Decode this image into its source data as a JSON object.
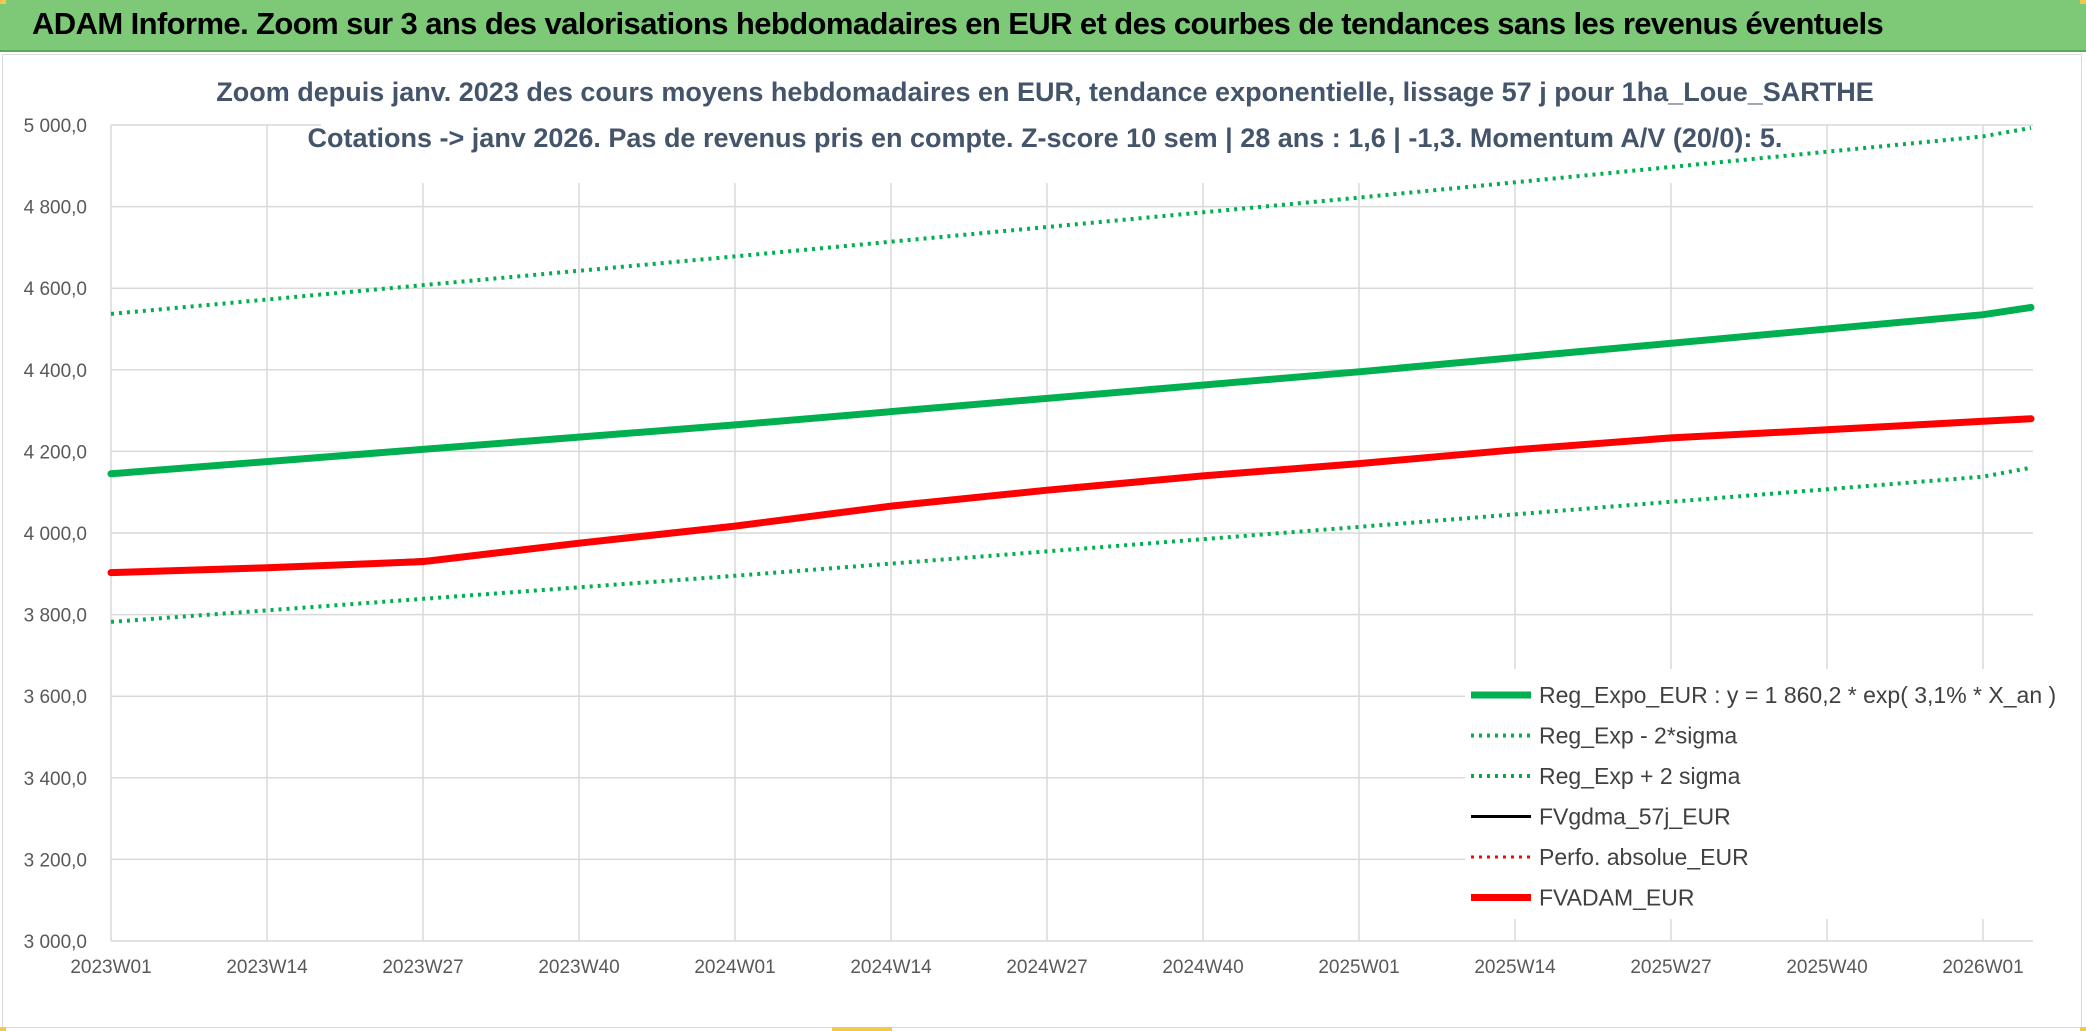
{
  "banner": {
    "title": "ADAM Informe. Zoom sur 3 ans des valorisations hebdomadaires en EUR et des courbes de tendances sans les revenus éventuels"
  },
  "colors": {
    "banner_bg": "#7dc977",
    "trend_green": "#00b050",
    "fv_red": "#ff0000",
    "fv_black": "#000000"
  },
  "chart_data": {
    "type": "line",
    "title": "Zoom depuis janv. 2023 des cours moyens hebdomadaires en EUR, tendance exponentielle, lissage 57 j pour 1ha_Loue_SARTHE",
    "subtitle": "Cotations -> janv 2026. Pas de revenus pris en compte. Z-score 10 sem | 28 ans : 1,6 | -1,3. Momentum A/V (20/0): 5.",
    "xlabel": "",
    "ylabel": "",
    "x_tick_labels": [
      "2023W01",
      "2023W14",
      "2023W27",
      "2023W40",
      "2024W01",
      "2024W14",
      "2024W27",
      "2024W40",
      "2025W01",
      "2025W14",
      "2025W27",
      "2025W40",
      "2026W01"
    ],
    "y_tick_labels": [
      "3 000,0",
      "3 200,0",
      "3 400,0",
      "3 600,0",
      "3 800,0",
      "4 000,0",
      "4 200,0",
      "4 400,0",
      "4 600,0",
      "4 800,0",
      "5 000,0"
    ],
    "ylim": [
      3000,
      5000
    ],
    "grid": true,
    "legend_position": "bottom-right",
    "x_week_index_range": [
      0,
      160
    ],
    "series": [
      {
        "name": "Reg_Expo_EUR : y = 1 860,2 * exp( 3,1% *  X_an )",
        "color": "#00b050",
        "style": "solid",
        "width": 7,
        "points": [
          [
            0,
            4145
          ],
          [
            52,
            4265
          ],
          [
            104,
            4395
          ],
          [
            156,
            4535
          ],
          [
            160,
            4553
          ]
        ]
      },
      {
        "name": "Reg_Exp - 2*sigma",
        "color": "#00b050",
        "style": "dotted",
        "width": 4,
        "points": [
          [
            0,
            3782
          ],
          [
            52,
            3895
          ],
          [
            104,
            4015
          ],
          [
            156,
            4138
          ],
          [
            160,
            4160
          ]
        ]
      },
      {
        "name": "Reg_Exp + 2 sigma",
        "color": "#00b050",
        "style": "dotted",
        "width": 4,
        "points": [
          [
            0,
            4537
          ],
          [
            52,
            4678
          ],
          [
            104,
            4822
          ],
          [
            156,
            4972
          ],
          [
            160,
            4993
          ]
        ]
      },
      {
        "name": "FVgdma_57j_EUR",
        "color": "#000000",
        "style": "solid",
        "width": 3,
        "points": [
          [
            0,
            3903
          ],
          [
            13,
            3915
          ],
          [
            26,
            3935
          ],
          [
            30,
            3943
          ],
          [
            39,
            3975
          ],
          [
            52,
            4017
          ],
          [
            65,
            4066
          ],
          [
            78,
            4107
          ],
          [
            91,
            4140
          ],
          [
            104,
            4170
          ],
          [
            117,
            4204
          ],
          [
            130,
            4233
          ],
          [
            143,
            4253
          ],
          [
            156,
            4274
          ],
          [
            160,
            4278
          ]
        ]
      },
      {
        "name": "Perfo. absolue_EUR",
        "color": "#ff0000",
        "style": "dotted",
        "width": 3,
        "points": [
          [
            0,
            3903
          ],
          [
            13,
            3915
          ],
          [
            26,
            3933
          ],
          [
            39,
            3975
          ],
          [
            52,
            4017
          ],
          [
            65,
            4066
          ],
          [
            78,
            4106
          ],
          [
            91,
            4140
          ],
          [
            104,
            4170
          ],
          [
            117,
            4204
          ],
          [
            130,
            4233
          ],
          [
            143,
            4253
          ],
          [
            156,
            4274
          ],
          [
            160,
            4280
          ]
        ]
      },
      {
        "name": "FVADAM_EUR",
        "color": "#ff0000",
        "style": "solid",
        "width": 7,
        "points": [
          [
            0,
            3903
          ],
          [
            13,
            3915
          ],
          [
            26,
            3930
          ],
          [
            39,
            3975
          ],
          [
            52,
            4017
          ],
          [
            65,
            4066
          ],
          [
            78,
            4105
          ],
          [
            91,
            4140
          ],
          [
            104,
            4170
          ],
          [
            117,
            4204
          ],
          [
            130,
            4233
          ],
          [
            143,
            4253
          ],
          [
            156,
            4274
          ],
          [
            160,
            4280
          ]
        ]
      }
    ]
  }
}
